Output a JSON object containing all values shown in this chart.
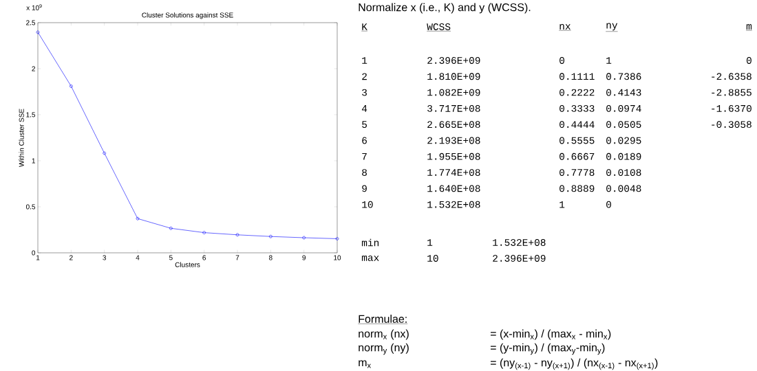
{
  "chart_data": {
    "type": "line",
    "title": "Cluster Solutions against SSE",
    "xlabel": "Clusters",
    "ylabel": "Within Cluster SSE",
    "x": [
      1,
      2,
      3,
      4,
      5,
      6,
      7,
      8,
      9,
      10
    ],
    "series": [
      {
        "color": "#0000ff",
        "values": [
          2.396,
          1.81,
          1.082,
          0.3717,
          0.2665,
          0.2193,
          0.1955,
          0.1774,
          0.164,
          0.1532
        ]
      }
    ],
    "xlim": [
      1,
      10
    ],
    "xticks": [
      1,
      2,
      3,
      4,
      5,
      6,
      7,
      8,
      9,
      10
    ],
    "ylim": [
      0,
      2.5
    ],
    "yticks": [
      0,
      0.5,
      1,
      1.5,
      2,
      2.5
    ],
    "marker": "circle",
    "grid": false,
    "annotations": [
      "x 10$^{9}$",
      "Normalize x (i.e., K) and y (WCSS).",
      "K",
      "WCSS",
      "nx",
      "ny",
      "m",
      "1",
      "2.396E+09",
      "0",
      "1",
      "0",
      "2",
      "1.810E+09",
      "0.1111",
      "0.7386",
      "-2.6358",
      "3",
      "1.082E+09",
      "0.2222",
      "0.4143",
      "-2.8855",
      "4",
      "3.717E+08",
      "0.3333",
      "0.0974",
      "-1.6370",
      "5",
      "2.665E+08",
      "0.4444",
      "0.0505",
      "-0.3058",
      "6",
      "2.193E+08",
      "0.5555",
      "0.0295",
      "7",
      "1.955E+08",
      "0.6667",
      "0.0189",
      "8",
      "1.774E+08",
      "0.7778",
      "0.0108",
      "9",
      "1.640E+08",
      "0.8889",
      "0.0048",
      "10",
      "1.532E+08",
      "1",
      "0",
      "min",
      "1",
      "1.532E+08",
      "max",
      "10",
      "2.396E+09",
      "Formulae:",
      "norm$_{x}$  (nx)",
      "= (x-min$_{x}$) / (max$_{x}$ - min$_{x}$)",
      "norm$_{y}$  (ny)",
      "= (y-min$_{y}$) / (max$_{y}$-min$_{y}$)",
      "m$_{x}$",
      "= (ny$_{(x-1)}$ - ny$_{(x+1)}$) / (nx$_{(x-1)}$ - nx$_{(x+1)}$)"
    ]
  }
}
